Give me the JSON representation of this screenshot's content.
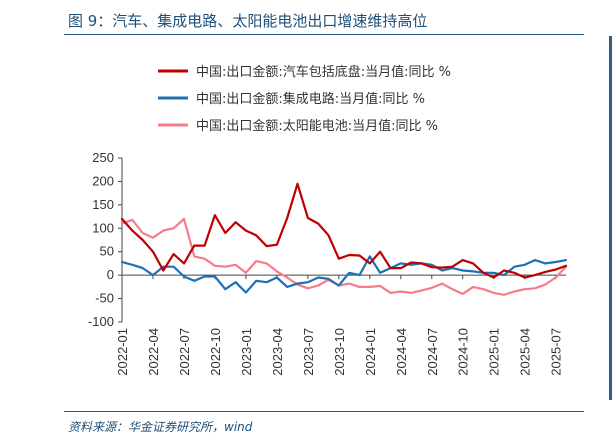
{
  "header": {
    "title": "图 9：汽车、集成电路、太阳能电池出口增速维持高位"
  },
  "footer": {
    "source": "资料来源：华金证券研究所，wind"
  },
  "chart_data": {
    "type": "line",
    "x": [
      "2022-01",
      "2022-02",
      "2022-03",
      "2022-04",
      "2022-05",
      "2022-06",
      "2022-07",
      "2022-08",
      "2022-09",
      "2022-10",
      "2022-11",
      "2022-12",
      "2023-01",
      "2023-02",
      "2023-03",
      "2023-04",
      "2023-05",
      "2023-06",
      "2023-07",
      "2023-08",
      "2023-09",
      "2023-10",
      "2023-11",
      "2023-12",
      "2024-01",
      "2024-02",
      "2024-03",
      "2024-04",
      "2024-05",
      "2024-06",
      "2024-07",
      "2024-08",
      "2024-09",
      "2024-10",
      "2024-11",
      "2024-12",
      "2025-01",
      "2025-02",
      "2025-03",
      "2025-04",
      "2025-05",
      "2025-06",
      "2025-07",
      "2025-08"
    ],
    "x_tick_labels": [
      "2022-01",
      "2022-04",
      "2022-07",
      "2022-10",
      "2023-01",
      "2023-04",
      "2023-07",
      "2023-10",
      "2024-01",
      "2024-04",
      "2024-07",
      "2024-10",
      "2025-01",
      "2025-04",
      "2025-07"
    ],
    "ylim": [
      -100,
      250
    ],
    "y_ticks": [
      -100,
      -50,
      0,
      50,
      100,
      150,
      200,
      250
    ],
    "legend_position": "top-left",
    "series": [
      {
        "name": "中国:出口金额:汽车包括底盘:当月值:同比 %",
        "color": "#c00000",
        "values": [
          120,
          95,
          75,
          50,
          10,
          45,
          25,
          63,
          63,
          128,
          90,
          113,
          95,
          85,
          62,
          65,
          122,
          195,
          122,
          110,
          85,
          35,
          43,
          42,
          25,
          50,
          15,
          15,
          27,
          25,
          17,
          16,
          18,
          32,
          25,
          5,
          -5,
          10,
          5,
          -5,
          0,
          7,
          12,
          20
        ]
      },
      {
        "name": "中国:出口金额:集成电路:当月值:同比 %",
        "color": "#1f6fb4",
        "values": [
          28,
          22,
          15,
          0,
          18,
          18,
          -3,
          -12,
          -3,
          -3,
          -30,
          -15,
          -37,
          -12,
          -15,
          -5,
          -25,
          -18,
          -15,
          -5,
          -8,
          -22,
          5,
          0,
          40,
          5,
          15,
          25,
          22,
          25,
          22,
          10,
          15,
          10,
          8,
          5,
          5,
          0,
          18,
          22,
          32,
          25,
          28,
          32
        ]
      },
      {
        "name": "中国:出口金额:太阳能电池:当月值:同比 %",
        "color": "#f47c8c",
        "values": [
          110,
          118,
          90,
          80,
          95,
          100,
          120,
          40,
          35,
          20,
          18,
          22,
          5,
          30,
          25,
          8,
          -5,
          -20,
          -28,
          -22,
          -10,
          -22,
          -18,
          -25,
          -25,
          -23,
          -38,
          -35,
          -38,
          -33,
          -27,
          -18,
          -30,
          -40,
          -25,
          -30,
          -38,
          -42,
          -35,
          -30,
          -28,
          -20,
          -5,
          18
        ]
      }
    ]
  }
}
